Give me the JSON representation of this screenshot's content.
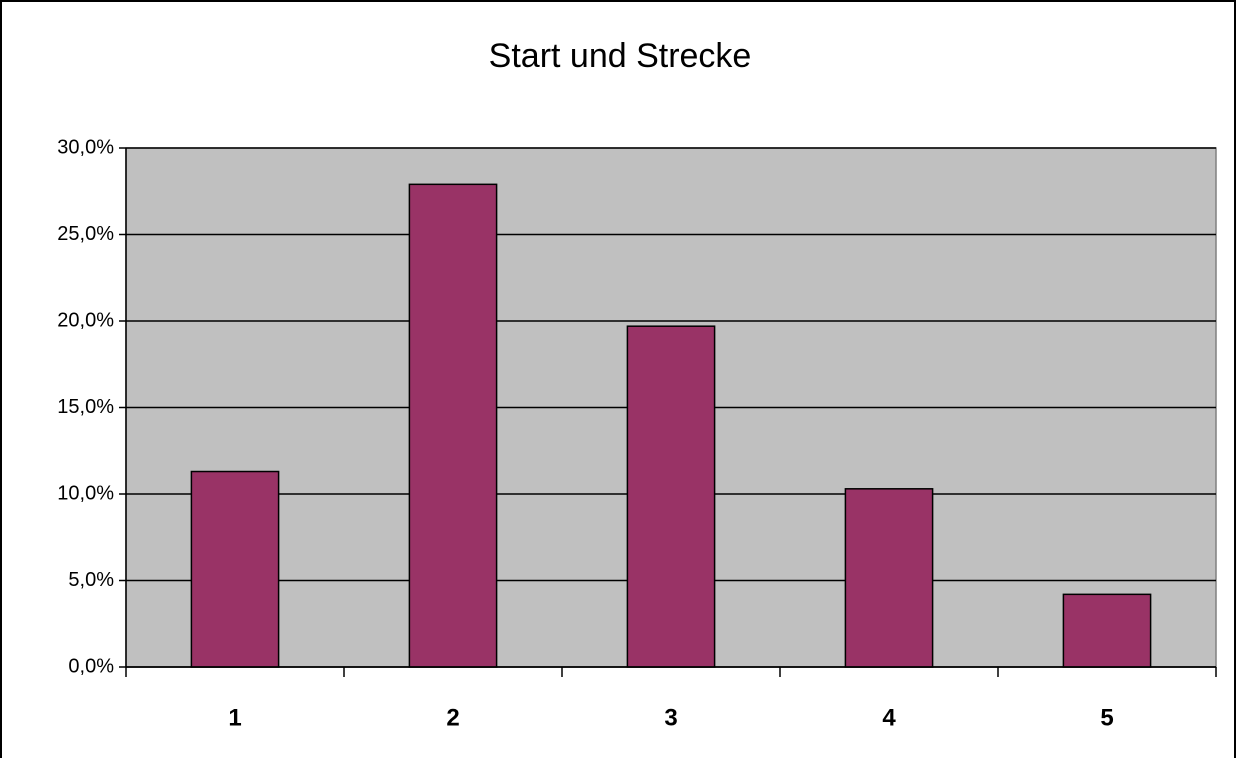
{
  "chart_data": {
    "type": "bar",
    "title": "Start und Strecke",
    "categories": [
      "1",
      "2",
      "3",
      "4",
      "5"
    ],
    "values": [
      11.3,
      27.9,
      19.7,
      10.3,
      4.2
    ],
    "color": "#993366",
    "plot_background": "#c0c0c0",
    "ylim": [
      0,
      30
    ],
    "yticks": [
      {
        "value": 0,
        "label": "0,0%"
      },
      {
        "value": 5,
        "label": "5,0%"
      },
      {
        "value": 10,
        "label": "10,0%"
      },
      {
        "value": 15,
        "label": "15,0%"
      },
      {
        "value": 20,
        "label": "20,0%"
      },
      {
        "value": 25,
        "label": "25,0%"
      },
      {
        "value": 30,
        "label": "30,0%"
      }
    ],
    "grid": true
  }
}
